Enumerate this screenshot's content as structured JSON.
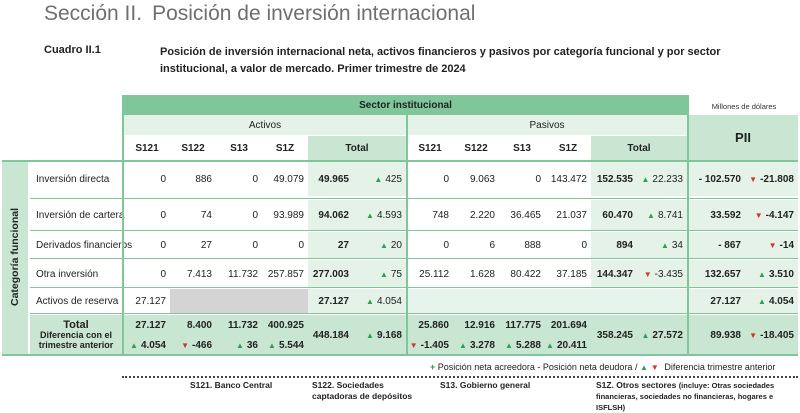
{
  "header": {
    "section_number": "Sección II.",
    "section_title": "Posición de inversión internacional",
    "table_label": "Cuadro II.1",
    "table_caption": "Posición de inversión internacional neta, activos financieros y pasivos por categoría funcional y por sector institucional, a valor de mercado. Primer trimestre de 2024",
    "units": "Millones de dólares"
  },
  "table": {
    "sector_header": "Sector institucional",
    "activos_header": "Activos",
    "pasivos_header": "Pasivos",
    "pii_header": "PII",
    "category_header": "Categoría funcional",
    "col_labels": [
      "S121",
      "S122",
      "S13",
      "S1Z",
      "Total"
    ],
    "rows": [
      {
        "label": "Inversión directa",
        "a": [
          "0",
          "886",
          "0",
          "49.079"
        ],
        "a_total": "49.965",
        "a_chg": "425",
        "a_dir": "up",
        "p": [
          "0",
          "9.063",
          "0",
          "143.472"
        ],
        "p_total": "152.535",
        "p_chg": "22.233",
        "p_dir": "up",
        "pii": "- 102.570",
        "pii_chg": "-21.808",
        "pii_dir": "down"
      },
      {
        "label": "Inversión de cartera",
        "a": [
          "0",
          "74",
          "0",
          "93.989"
        ],
        "a_total": "94.062",
        "a_chg": "4.593",
        "a_dir": "up",
        "p": [
          "748",
          "2.220",
          "36.465",
          "21.037"
        ],
        "p_total": "60.470",
        "p_chg": "8.741",
        "p_dir": "up",
        "pii": "33.592",
        "pii_chg": "-4.147",
        "pii_dir": "down"
      },
      {
        "label": "Derivados financieros",
        "a": [
          "0",
          "27",
          "0",
          "0"
        ],
        "a_total": "27",
        "a_chg": "20",
        "a_dir": "up",
        "p": [
          "0",
          "6",
          "888",
          "0"
        ],
        "p_total": "894",
        "p_chg": "34",
        "p_dir": "up",
        "pii": "- 867",
        "pii_chg": "-14",
        "pii_dir": "down"
      },
      {
        "label": "Otra inversión",
        "a": [
          "0",
          "7.413",
          "11.732",
          "257.857"
        ],
        "a_total": "277.003",
        "a_chg": "75",
        "a_dir": "up",
        "p": [
          "25.112",
          "1.628",
          "80.422",
          "37.185"
        ],
        "p_total": "144.347",
        "p_chg": "-3.435",
        "p_dir": "down",
        "pii": "132.657",
        "pii_chg": "3.510",
        "pii_dir": "up"
      }
    ],
    "reserve": {
      "label": "Activos de reserva",
      "s121": "27.127",
      "a_total": "27.127",
      "a_chg": "4.054",
      "a_dir": "up",
      "pii": "27.127",
      "pii_chg": "4.054",
      "pii_dir": "up"
    },
    "total": {
      "label": "Total",
      "sublabel": "Diferencia con el trimestre anterior",
      "a": [
        "27.127",
        "8.400",
        "11.732",
        "400.925"
      ],
      "a_chg": [
        {
          "v": "4.054",
          "d": "up"
        },
        {
          "v": "-466",
          "d": "down"
        },
        {
          "v": "36",
          "d": "up"
        },
        {
          "v": "5.544",
          "d": "up"
        }
      ],
      "a_total": "448.184",
      "a_total_chg": "9.168",
      "a_total_dir": "up",
      "p": [
        "25.860",
        "12.916",
        "117.775",
        "201.694"
      ],
      "p_chg": [
        {
          "v": "-1.405",
          "d": "down"
        },
        {
          "v": "3.278",
          "d": "up"
        },
        {
          "v": "5.288",
          "d": "up"
        },
        {
          "v": "20.411",
          "d": "up"
        }
      ],
      "p_total": "358.245",
      "p_total_chg": "27.572",
      "p_total_dir": "up",
      "pii": "89.938",
      "pii_chg": "-18.405",
      "pii_dir": "down"
    }
  },
  "legend": {
    "plus": "+",
    "pos_acreedora": "Posición neta acreedora",
    "minus": "-",
    "pos_deudora": "Posición neta deudora /",
    "diff": "Diferencia trimestre anterior"
  },
  "footnotes": [
    {
      "title": "S121. Banco Central"
    },
    {
      "title": "S122. Sociedades captadoras de depósitos"
    },
    {
      "title": "S13. Gobierno general"
    },
    {
      "title": "S1Z. Otros sectores",
      "note": "(incluye: Otras sociedades financieras, sociedades no financieras, hogares e ISFLSH)"
    }
  ],
  "colors": {
    "accent_green": "#7fc79a",
    "up_arrow": "#2e9e4f",
    "down_arrow": "#d3362c"
  }
}
